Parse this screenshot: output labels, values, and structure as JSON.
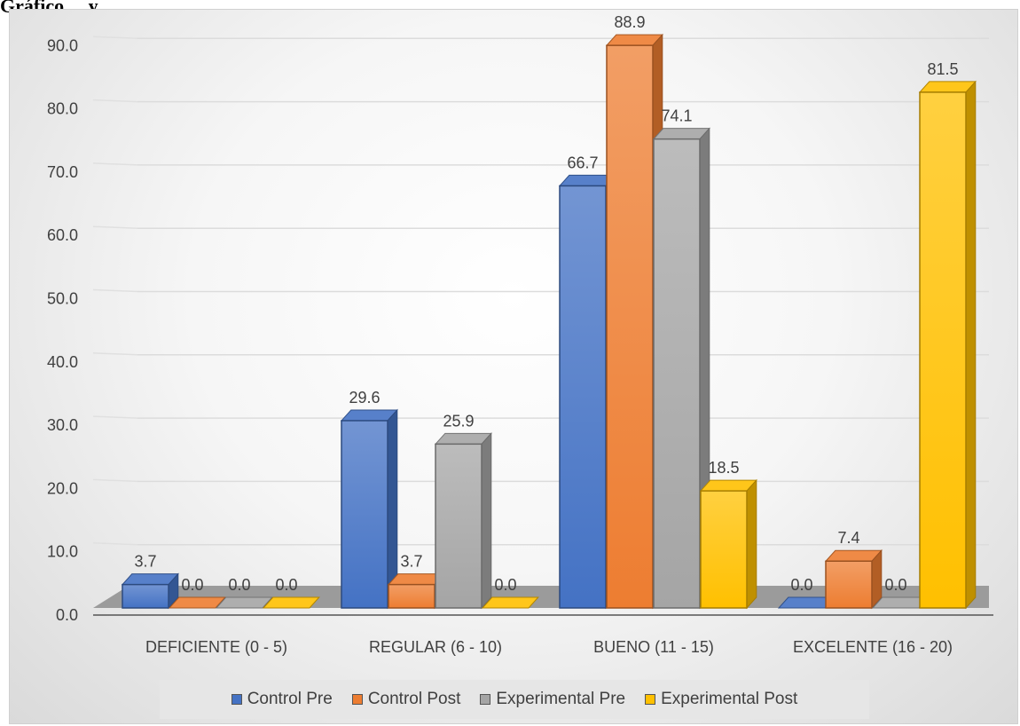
{
  "heading": "Gráfico ... y",
  "chart_data": {
    "type": "bar",
    "categories": [
      "DEFICIENTE (0 - 5)",
      "REGULAR (6 - 10)",
      "BUENO (11 - 15)",
      "EXCELENTE (16 - 20)"
    ],
    "series": [
      {
        "name": "Control Pre",
        "values": [
          3.7,
          29.6,
          66.7,
          0.0
        ],
        "color": "#4472c4"
      },
      {
        "name": "Control Post",
        "values": [
          0.0,
          3.7,
          88.9,
          7.4
        ],
        "color": "#ed7d31"
      },
      {
        "name": "Experimental Pre",
        "values": [
          0.0,
          25.9,
          74.1,
          0.0
        ],
        "color": "#a5a5a5"
      },
      {
        "name": "Experimental Post",
        "values": [
          0.0,
          0.0,
          18.5,
          81.5
        ],
        "color": "#ffc000"
      }
    ],
    "data_labels": [
      [
        "3.7",
        "29.6",
        "66.7",
        "0.0"
      ],
      [
        "0.0",
        "3.7",
        "88.9",
        "7.4"
      ],
      [
        "0.0",
        "25.9",
        "74.1",
        "0.0"
      ],
      [
        "0.0",
        "0.0",
        "18.5",
        "81.5"
      ]
    ],
    "yticks": [
      "0.0",
      "10.0",
      "20.0",
      "30.0",
      "40.0",
      "50.0",
      "60.0",
      "70.0",
      "80.0",
      "90.0"
    ],
    "ylim": [
      0,
      90
    ],
    "grid": true,
    "legend_position": "bottom"
  }
}
